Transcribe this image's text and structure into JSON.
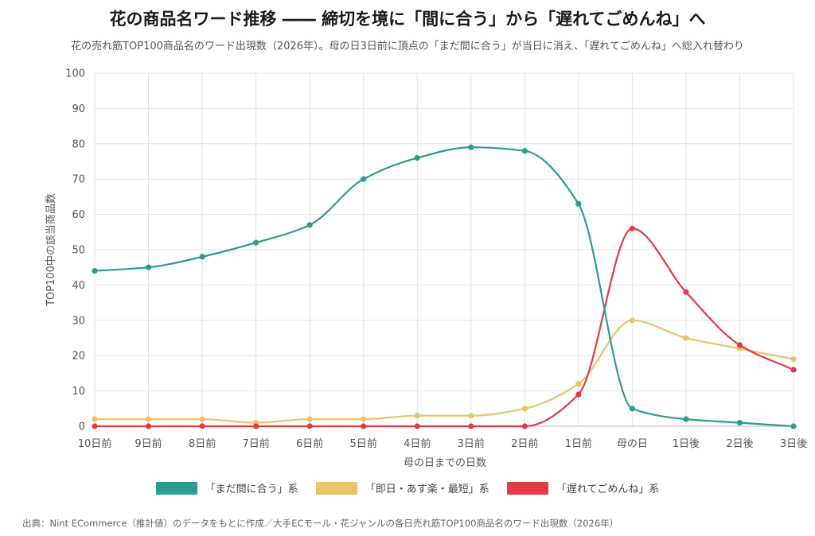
{
  "chart_data": {
    "type": "line",
    "title": "花の商品名ワード推移 ―― 締切を境に「間に合う」から「遅れてごめんね」へ",
    "subtitle": "花の売れ筋TOP100商品名のワード出現数（2026年）。母の日3日前に頂点の「まだ間に合う」が当日に消え、「遅れてごめんね」へ総入れ替わり",
    "xlabel": "母の日までの日数",
    "ylabel": "TOP100中の該当商品数",
    "categories": [
      "10日前",
      "9日前",
      "8日前",
      "7日前",
      "6日前",
      "5日前",
      "4日前",
      "3日前",
      "2日前",
      "1日前",
      "母の日",
      "1日後",
      "2日後",
      "3日後"
    ],
    "ylim": [
      0,
      100
    ],
    "yticks": [
      "0",
      "10",
      "20",
      "30",
      "40",
      "50",
      "60",
      "70",
      "80",
      "90",
      "100"
    ],
    "grid": true,
    "legend_position": "bottom",
    "series": [
      {
        "name": "「まだ間に合う」系",
        "color": "#2a9d8f",
        "values": [
          44,
          45,
          48,
          52,
          57,
          70,
          76,
          79,
          78,
          63,
          5,
          2,
          1,
          0
        ]
      },
      {
        "name": "「即日・あす楽・最短」系",
        "color": "#e9c46a",
        "values": [
          2,
          2,
          2,
          1,
          2,
          2,
          3,
          3,
          5,
          12,
          30,
          25,
          22,
          19
        ]
      },
      {
        "name": "「遅れてごめんね」系",
        "color": "#e63946",
        "values": [
          0,
          0,
          0,
          0,
          0,
          0,
          0,
          0,
          0,
          9,
          56,
          38,
          23,
          16
        ]
      }
    ]
  },
  "source": "出典：Nint ECommerce（推計値）のデータをもとに作成／大手ECモール・花ジャンルの各日売れ筋TOP100商品名のワード出現数（2026年）"
}
